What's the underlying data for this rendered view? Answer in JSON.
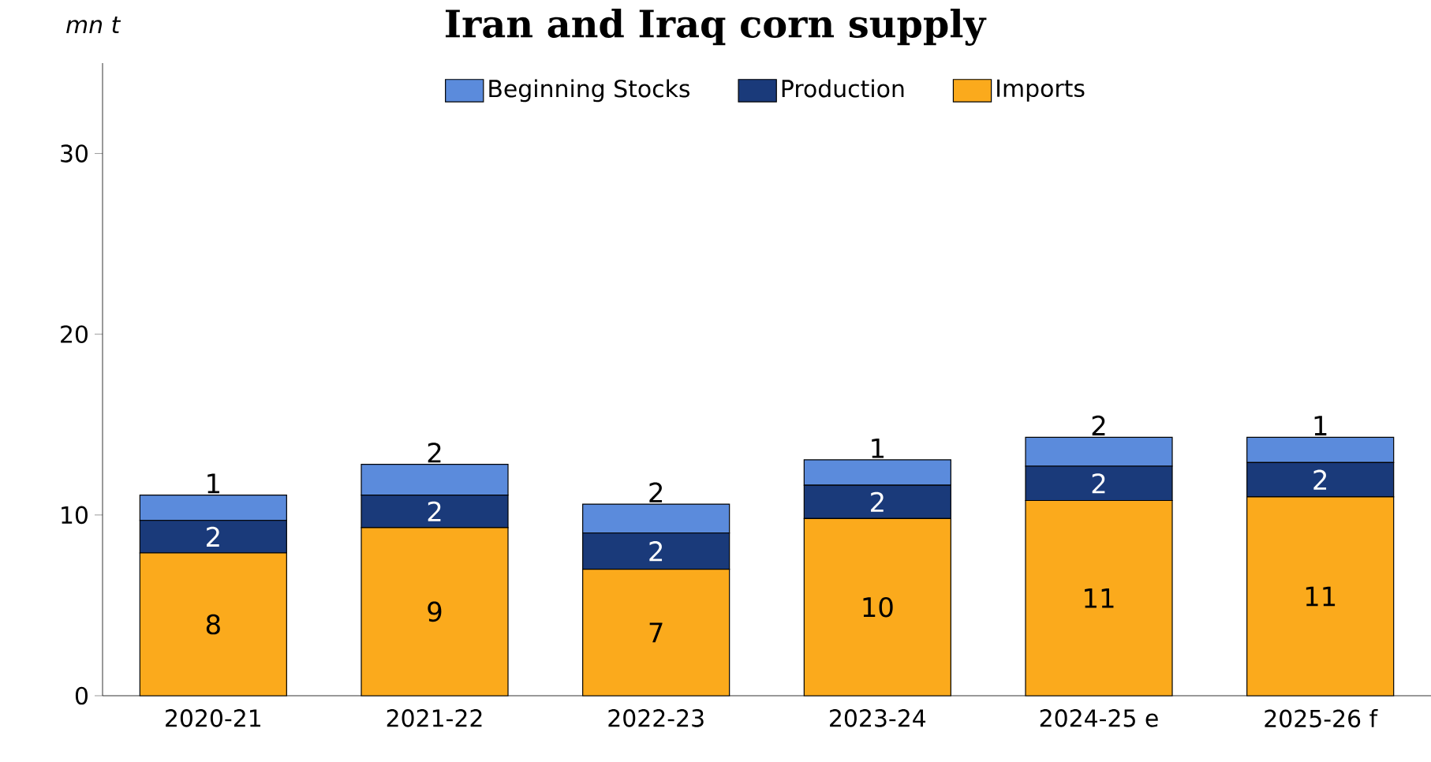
{
  "chart_data": {
    "type": "bar",
    "title": "Iran and Iraq corn supply",
    "ylabel": "mn t",
    "categories": [
      "2020-21",
      "2021-22",
      "2022-23",
      "2023-24",
      "2024-25 e",
      "2025-26 f"
    ],
    "stacked": true,
    "legend": "top",
    "series": [
      {
        "name": "Imports",
        "color": "#fbaa1c",
        "values": [
          7.9,
          9.3,
          7.0,
          9.8,
          10.8,
          11.0
        ],
        "value_labels": [
          "8",
          "9",
          "7",
          "10",
          "11",
          "11"
        ]
      },
      {
        "name": "Production",
        "color": "#1a3a7a",
        "values": [
          1.8,
          1.8,
          2.0,
          1.85,
          1.9,
          1.9
        ],
        "value_labels": [
          "2",
          "2",
          "2",
          "2",
          "2",
          "2"
        ]
      },
      {
        "name": "Beginning Stocks",
        "color": "#5b8bdc",
        "values": [
          1.4,
          1.7,
          1.6,
          1.4,
          1.6,
          1.4
        ],
        "value_labels": [
          "1",
          "2",
          "2",
          "1",
          "2",
          "1"
        ]
      }
    ],
    "ylim": [
      0,
      35
    ],
    "yticks": [
      0,
      10,
      20,
      30
    ]
  }
}
